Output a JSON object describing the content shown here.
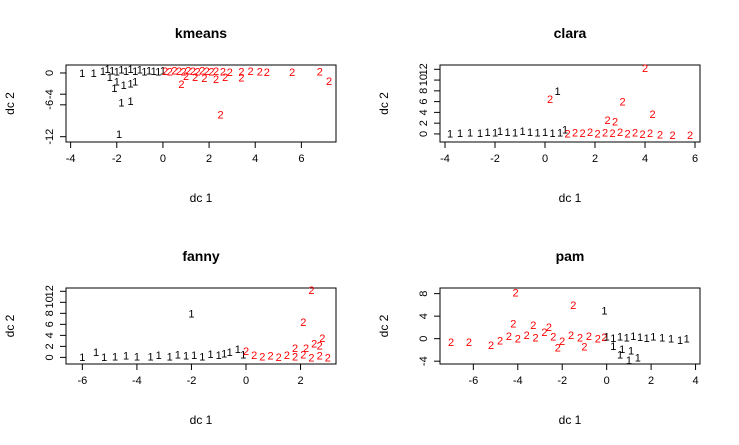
{
  "chart_data": [
    {
      "type": "scatter",
      "title": "kmeans",
      "xlabel": "dc 1",
      "ylabel": "dc 2",
      "xlim": [
        -4.2,
        7.5
      ],
      "ylim": [
        -13,
        1.5
      ],
      "xticks": [
        -4,
        -2,
        0,
        2,
        4,
        6
      ],
      "yticks": [
        -12,
        -6,
        -4,
        0
      ],
      "series": [
        {
          "label": "1",
          "color": "#000000",
          "points": [
            [
              -3.5,
              -0.2
            ],
            [
              -3.0,
              -0.2
            ],
            [
              -2.6,
              0.2
            ],
            [
              -2.4,
              0.5
            ],
            [
              -2.2,
              0.3
            ],
            [
              -2.0,
              0.1
            ],
            [
              -1.8,
              0.4
            ],
            [
              -1.6,
              0.2
            ],
            [
              -1.4,
              0.5
            ],
            [
              -1.2,
              0.2
            ],
            [
              -1.0,
              0.4
            ],
            [
              -0.8,
              0.1
            ],
            [
              -0.6,
              0.3
            ],
            [
              -0.4,
              0.2
            ],
            [
              -0.2,
              0.1
            ],
            [
              0.0,
              0.3
            ],
            [
              -2.3,
              -1.0
            ],
            [
              -2.0,
              -1.8
            ],
            [
              -1.7,
              -2.5
            ],
            [
              -1.4,
              -2.2
            ],
            [
              -1.2,
              -1.8
            ],
            [
              -2.1,
              -3.0
            ],
            [
              -1.8,
              -5.8
            ],
            [
              -1.4,
              -5.5
            ],
            [
              -1.9,
              -11.7
            ]
          ]
        },
        {
          "label": "2",
          "color": "#ff0000",
          "points": [
            [
              0.1,
              0.2
            ],
            [
              0.3,
              0.1
            ],
            [
              0.5,
              0.3
            ],
            [
              0.7,
              0.2
            ],
            [
              0.9,
              0.1
            ],
            [
              1.1,
              0.3
            ],
            [
              1.3,
              0.2
            ],
            [
              1.5,
              0.1
            ],
            [
              1.7,
              0.3
            ],
            [
              1.9,
              0.2
            ],
            [
              2.1,
              0.1
            ],
            [
              2.3,
              0.2
            ],
            [
              2.6,
              0.1
            ],
            [
              2.9,
              0.0
            ],
            [
              3.4,
              0.1
            ],
            [
              3.8,
              0.2
            ],
            [
              4.2,
              0.1
            ],
            [
              4.5,
              0.0
            ],
            [
              5.6,
              0.0
            ],
            [
              6.8,
              0.1
            ],
            [
              1.0,
              -0.8
            ],
            [
              1.4,
              -1.0
            ],
            [
              1.8,
              -1.2
            ],
            [
              2.3,
              -1.3
            ],
            [
              2.7,
              -1.0
            ],
            [
              3.4,
              -1.1
            ],
            [
              0.8,
              -2.3
            ],
            [
              7.2,
              -1.7
            ],
            [
              2.5,
              -8.0
            ]
          ]
        }
      ]
    },
    {
      "type": "scatter",
      "title": "clara",
      "xlabel": "dc 1",
      "ylabel": "dc 2",
      "xlim": [
        -4.2,
        6.2
      ],
      "ylim": [
        -1.5,
        12.8
      ],
      "xticks": [
        -4,
        -2,
        0,
        2,
        4,
        6
      ],
      "yticks": [
        0,
        2,
        4,
        6,
        8,
        10,
        12
      ],
      "series": [
        {
          "label": "1",
          "color": "#000000",
          "points": [
            [
              -3.8,
              -0.1
            ],
            [
              -3.4,
              0.0
            ],
            [
              -3.0,
              0.1
            ],
            [
              -2.6,
              0.0
            ],
            [
              -2.3,
              0.2
            ],
            [
              -2.0,
              0.1
            ],
            [
              -1.8,
              0.3
            ],
            [
              -1.5,
              0.2
            ],
            [
              -1.2,
              0.1
            ],
            [
              -0.9,
              0.3
            ],
            [
              -0.6,
              0.2
            ],
            [
              -0.3,
              0.1
            ],
            [
              0.0,
              0.2
            ],
            [
              0.3,
              0.0
            ],
            [
              0.6,
              0.1
            ],
            [
              0.8,
              0.6
            ],
            [
              0.5,
              7.8
            ]
          ]
        },
        {
          "label": "2",
          "color": "#ff0000",
          "points": [
            [
              0.9,
              -0.1
            ],
            [
              1.2,
              0.1
            ],
            [
              1.5,
              0.0
            ],
            [
              1.8,
              0.2
            ],
            [
              2.1,
              -0.1
            ],
            [
              2.4,
              0.1
            ],
            [
              2.7,
              0.0
            ],
            [
              3.0,
              0.2
            ],
            [
              3.3,
              -0.1
            ],
            [
              3.6,
              0.1
            ],
            [
              3.9,
              -0.2
            ],
            [
              4.2,
              0.0
            ],
            [
              4.6,
              -0.3
            ],
            [
              5.1,
              -0.4
            ],
            [
              5.8,
              -0.4
            ],
            [
              2.5,
              2.4
            ],
            [
              2.8,
              2.1
            ],
            [
              3.1,
              5.8
            ],
            [
              4.3,
              3.5
            ],
            [
              0.2,
              6.3
            ],
            [
              4.0,
              12.0
            ]
          ]
        }
      ]
    },
    {
      "type": "scatter",
      "title": "fanny",
      "xlabel": "dc 1",
      "ylabel": "dc 2",
      "xlim": [
        -6.6,
        3.3
      ],
      "ylim": [
        -1.2,
        12.6
      ],
      "xticks": [
        -6,
        -4,
        -2,
        0,
        2
      ],
      "yticks": [
        0,
        2,
        4,
        6,
        8,
        10,
        12
      ],
      "series": [
        {
          "label": "1",
          "color": "#000000",
          "points": [
            [
              -6.0,
              -0.1
            ],
            [
              -5.5,
              0.8
            ],
            [
              -5.2,
              -0.1
            ],
            [
              -4.8,
              0.0
            ],
            [
              -4.4,
              0.1
            ],
            [
              -4.0,
              0.0
            ],
            [
              -3.5,
              0.0
            ],
            [
              -3.2,
              0.2
            ],
            [
              -2.8,
              0.0
            ],
            [
              -2.5,
              0.3
            ],
            [
              -2.2,
              0.1
            ],
            [
              -1.9,
              0.2
            ],
            [
              -1.6,
              0.0
            ],
            [
              -1.3,
              0.4
            ],
            [
              -1.0,
              0.2
            ],
            [
              -0.8,
              0.5
            ],
            [
              -0.6,
              0.8
            ],
            [
              -0.3,
              1.3
            ],
            [
              -0.1,
              0.3
            ],
            [
              -2.0,
              7.8
            ]
          ]
        },
        {
          "label": "2",
          "color": "#ff0000",
          "points": [
            [
              0.0,
              1.0
            ],
            [
              0.3,
              0.2
            ],
            [
              0.6,
              0.0
            ],
            [
              0.9,
              0.1
            ],
            [
              1.2,
              -0.1
            ],
            [
              1.5,
              0.2
            ],
            [
              1.8,
              0.0
            ],
            [
              2.1,
              0.3
            ],
            [
              2.4,
              -0.2
            ],
            [
              2.7,
              0.1
            ],
            [
              3.0,
              -0.2
            ],
            [
              2.2,
              1.5
            ],
            [
              2.5,
              2.3
            ],
            [
              2.7,
              2.0
            ],
            [
              1.8,
              1.5
            ],
            [
              2.1,
              6.2
            ],
            [
              2.8,
              3.3
            ],
            [
              2.4,
              12.0
            ]
          ]
        }
      ]
    },
    {
      "type": "scatter",
      "title": "pam",
      "xlabel": "dc 1",
      "ylabel": "dc 2",
      "xlim": [
        -7.5,
        4.2
      ],
      "ylim": [
        -4.5,
        9.0
      ],
      "xticks": [
        -6,
        -4,
        -2,
        0,
        2,
        4
      ],
      "yticks": [
        -4,
        0,
        4,
        8
      ],
      "series": [
        {
          "label": "2",
          "color": "#ff0000",
          "points": [
            [
              -7.0,
              -0.8
            ],
            [
              -6.2,
              -0.8
            ],
            [
              -5.2,
              -1.3
            ],
            [
              -4.8,
              -0.5
            ],
            [
              -4.4,
              0.3
            ],
            [
              -4.0,
              -0.2
            ],
            [
              -3.6,
              0.5
            ],
            [
              -3.2,
              0.0
            ],
            [
              -2.8,
              1.0
            ],
            [
              -2.4,
              0.2
            ],
            [
              -2.0,
              -0.6
            ],
            [
              -1.6,
              0.5
            ],
            [
              -1.2,
              0.0
            ],
            [
              -0.8,
              0.3
            ],
            [
              -0.4,
              -0.2
            ],
            [
              -0.1,
              0.1
            ],
            [
              -4.2,
              2.5
            ],
            [
              -3.3,
              2.2
            ],
            [
              -2.6,
              1.9
            ],
            [
              -1.5,
              5.8
            ],
            [
              -4.1,
              8.0
            ],
            [
              -2.2,
              -1.8
            ],
            [
              -1.0,
              -1.6
            ]
          ]
        },
        {
          "label": "1",
          "color": "#000000",
          "points": [
            [
              -0.1,
              4.8
            ],
            [
              0.0,
              0.2
            ],
            [
              0.3,
              -0.1
            ],
            [
              0.6,
              0.2
            ],
            [
              0.9,
              0.0
            ],
            [
              1.2,
              0.3
            ],
            [
              1.5,
              0.1
            ],
            [
              1.8,
              -0.1
            ],
            [
              2.1,
              0.2
            ],
            [
              2.5,
              0.0
            ],
            [
              2.9,
              -0.2
            ],
            [
              3.3,
              -0.4
            ],
            [
              3.6,
              -0.2
            ],
            [
              0.3,
              -1.5
            ],
            [
              0.7,
              -2.0
            ],
            [
              1.1,
              -2.3
            ],
            [
              0.6,
              -3.0
            ],
            [
              1.0,
              -4.0
            ],
            [
              1.4,
              -3.5
            ]
          ]
        }
      ]
    }
  ]
}
